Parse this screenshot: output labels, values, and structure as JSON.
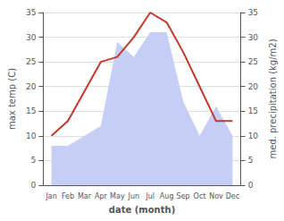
{
  "chart_data": {
    "type": "line",
    "categories": [
      "Jan",
      "Feb",
      "Mar",
      "Apr",
      "May",
      "Jun",
      "Jul",
      "Aug",
      "Sep",
      "Oct",
      "Nov",
      "Dec"
    ],
    "xlabel": "date (month)",
    "ylabel": "max temp (C)",
    "y2label": "med. precipitation (kg/m2)",
    "series": [
      {
        "type": "line",
        "color": "#c0392b",
        "values": [
          10,
          13,
          19,
          25,
          26,
          30,
          35,
          33,
          27,
          20,
          13,
          13
        ]
      },
      {
        "type": "area",
        "axis": "y2",
        "color": "#c5cef5",
        "values": [
          8,
          8,
          10,
          12,
          29,
          26,
          31,
          31,
          17,
          10,
          16,
          10
        ]
      }
    ],
    "ylim": [
      0,
      35
    ],
    "yticks": [
      0,
      5,
      10,
      15,
      20,
      25,
      30,
      35
    ],
    "y2lim": [
      0,
      35
    ],
    "y2ticks": [
      0,
      5,
      10,
      15,
      20,
      25,
      30,
      35
    ],
    "grid": true
  }
}
